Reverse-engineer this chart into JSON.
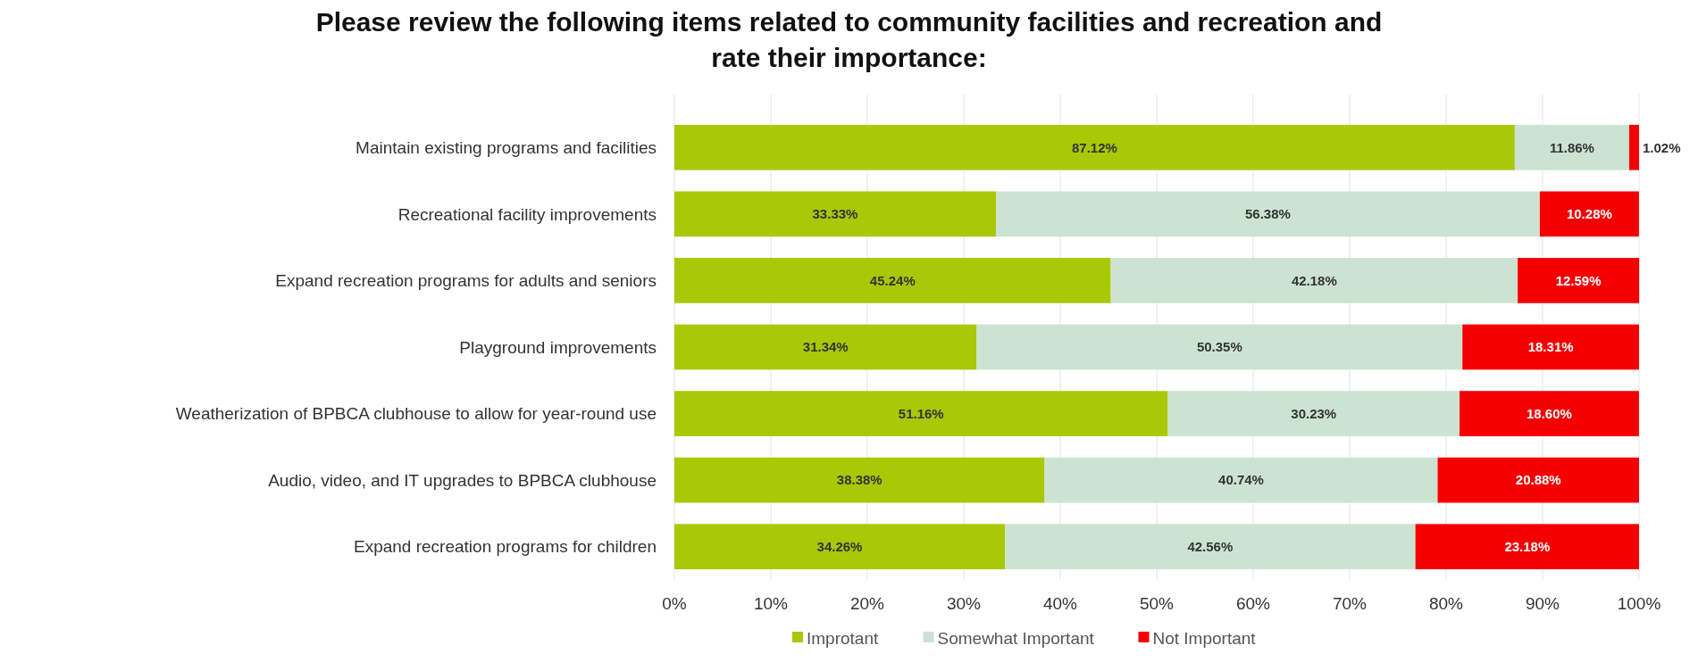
{
  "chart_data": {
    "type": "bar",
    "orientation": "horizontal",
    "stacked": true,
    "title": "Please review the following items related to community facilities and recreation and rate their importance:",
    "categories": [
      "Maintain existing programs and facilities",
      "Recreational facility improvements",
      "Expand recreation programs for adults and seniors",
      "Playground improvements",
      "Weatherization of BPBCA clubhouse to allow for year-round use",
      "Audio, video, and IT upgrades to BPBCA clubhouse",
      "Expand recreation programs for children"
    ],
    "series": [
      {
        "name": "Improtant",
        "color": "#a9c805",
        "values": [
          87.12,
          33.33,
          45.24,
          31.34,
          51.16,
          38.38,
          34.26
        ],
        "value_labels": [
          "87.12%",
          "33.33%",
          "45.24%",
          "31.34%",
          "51.16%",
          "38.38%",
          "34.26%"
        ]
      },
      {
        "name": "Somewhat Important",
        "color": "#cce3d2",
        "values": [
          11.86,
          56.38,
          42.18,
          50.35,
          30.23,
          40.74,
          42.56
        ],
        "value_labels": [
          "11.86%",
          "56.38%",
          "42.18%",
          "50.35%",
          "30.23%",
          "40.74%",
          "42.56%"
        ]
      },
      {
        "name": "Not Important",
        "color": "#f50000",
        "values": [
          1.02,
          10.28,
          12.59,
          18.31,
          18.6,
          20.88,
          23.18
        ],
        "value_labels": [
          "1.02%",
          "10.28%",
          "12.59%",
          "18.31%",
          "18.60%",
          "20.88%",
          "23.18%"
        ]
      }
    ],
    "xlim": [
      0,
      100
    ],
    "xticks": [
      {
        "value": 0,
        "label": "0%"
      },
      {
        "value": 10,
        "label": "10%"
      },
      {
        "value": 20,
        "label": "20%"
      },
      {
        "value": 30,
        "label": "30%"
      },
      {
        "value": 40,
        "label": "40%"
      },
      {
        "value": 50,
        "label": "50%"
      },
      {
        "value": 60,
        "label": "60%"
      },
      {
        "value": 70,
        "label": "70%"
      },
      {
        "value": 80,
        "label": "80%"
      },
      {
        "value": 90,
        "label": "90%"
      },
      {
        "value": 100,
        "label": "100%"
      }
    ],
    "grid": "x",
    "legend": "bottom"
  }
}
